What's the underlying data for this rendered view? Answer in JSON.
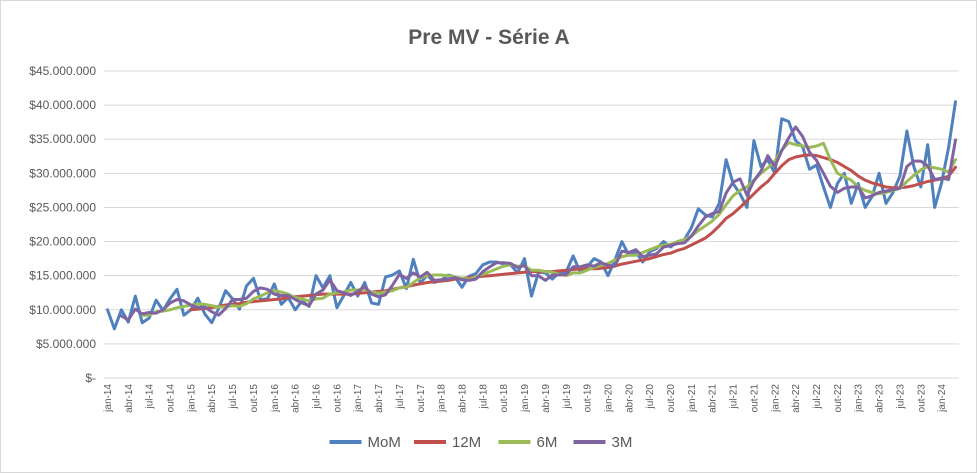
{
  "chart_data": {
    "type": "line",
    "title": "Pre MV - Série A",
    "xlabel": "",
    "ylabel": "",
    "ylim": [
      0,
      45000000
    ],
    "yticks": [
      0,
      5000000,
      10000000,
      15000000,
      20000000,
      25000000,
      30000000,
      35000000,
      40000000,
      45000000
    ],
    "ytick_labels": [
      "$-",
      "$5.000.000",
      "$10.000.000",
      "$15.000.000",
      "$20.000.000",
      "$25.000.000",
      "$30.000.000",
      "$35.000.000",
      "$40.000.000",
      "$45.000.000"
    ],
    "grid": true,
    "legend_position": "bottom",
    "x": [
      "jan-14",
      "fev-14",
      "mar-14",
      "abr-14",
      "mai-14",
      "jun-14",
      "jul-14",
      "ago-14",
      "set-14",
      "out-14",
      "nov-14",
      "dez-14",
      "jan-15",
      "fev-15",
      "mar-15",
      "abr-15",
      "mai-15",
      "jun-15",
      "jul-15",
      "ago-15",
      "set-15",
      "out-15",
      "nov-15",
      "dez-15",
      "jan-16",
      "fev-16",
      "mar-16",
      "abr-16",
      "mai-16",
      "jun-16",
      "jul-16",
      "ago-16",
      "set-16",
      "out-16",
      "nov-16",
      "dez-16",
      "jan-17",
      "fev-17",
      "mar-17",
      "abr-17",
      "mai-17",
      "jun-17",
      "jul-17",
      "ago-17",
      "set-17",
      "out-17",
      "nov-17",
      "dez-17",
      "jan-18",
      "fev-18",
      "mar-18",
      "abr-18",
      "mai-18",
      "jun-18",
      "jul-18",
      "ago-18",
      "set-18",
      "out-18",
      "nov-18",
      "dez-18",
      "jan-19",
      "fev-19",
      "mar-19",
      "abr-19",
      "mai-19",
      "jun-19",
      "jul-19",
      "ago-19",
      "set-19",
      "out-19",
      "nov-19",
      "dez-19",
      "jan-20",
      "fev-20",
      "mar-20",
      "abr-20",
      "mai-20",
      "jun-20",
      "jul-20",
      "ago-20",
      "set-20",
      "out-20",
      "nov-20",
      "dez-20",
      "jan-21",
      "fev-21",
      "mar-21",
      "abr-21",
      "mai-21",
      "jun-21",
      "jul-21",
      "ago-21",
      "set-21",
      "out-21",
      "nov-21",
      "dez-21",
      "jan-22",
      "fev-22",
      "mar-22",
      "abr-22",
      "mai-22",
      "jun-22",
      "jul-22",
      "ago-22",
      "set-22",
      "out-22",
      "nov-22",
      "dez-22",
      "jan-23",
      "fev-23",
      "mar-23",
      "abr-23",
      "mai-23",
      "jun-23",
      "jul-23",
      "ago-23",
      "set-23",
      "out-23",
      "nov-23",
      "dez-23",
      "jan-24",
      "fev-24",
      "mar-24"
    ],
    "x_tick_labels": [
      "jan-14",
      "abr-14",
      "jul-14",
      "out-14",
      "jan-15",
      "abr-15",
      "jul-15",
      "out-15",
      "jan-16",
      "abr-16",
      "jul-16",
      "out-16",
      "jan-17",
      "abr-17",
      "jul-17",
      "out-17",
      "jan-18",
      "abr-18",
      "jul-18",
      "out-18",
      "jan-19",
      "abr-19",
      "jul-19",
      "out-19",
      "jan-20",
      "abr-20",
      "jul-20",
      "out-20",
      "jan-21",
      "abr-21",
      "jul-21",
      "out-21",
      "jan-22",
      "abr-22",
      "jul-22",
      "out-22",
      "jan-23",
      "abr-23",
      "jul-23",
      "out-23",
      "jan-24"
    ],
    "series": [
      {
        "name": "MoM",
        "color": "#4e81bd",
        "values": [
          10.0,
          7.2,
          10.0,
          8.2,
          12.0,
          8.1,
          8.8,
          11.4,
          9.9,
          11.6,
          13.0,
          9.2,
          10.0,
          11.7,
          9.4,
          8.1,
          10.2,
          12.8,
          11.6,
          10.1,
          13.5,
          14.6,
          11.5,
          11.6,
          13.8,
          10.8,
          11.8,
          10.0,
          11.3,
          10.5,
          15.0,
          13.2,
          15.0,
          10.3,
          12.1,
          14.0,
          12.0,
          14.0,
          11.0,
          10.8,
          14.8,
          15.1,
          15.7,
          13.1,
          17.4,
          13.9,
          15.1,
          14.0,
          14.3,
          15.1,
          14.8,
          13.3,
          14.9,
          15.3,
          16.6,
          17.0,
          17.0,
          16.7,
          16.6,
          15.4,
          17.5,
          12.0,
          15.5,
          15.4,
          14.5,
          15.5,
          15.6,
          17.9,
          15.5,
          16.3,
          17.5,
          17.0,
          15.0,
          17.3,
          20.0,
          18.0,
          18.5,
          17.0,
          18.5,
          19.0,
          20.0,
          19.2,
          20.0,
          20.3,
          22.0,
          24.8,
          23.9,
          23.6,
          25.6,
          32.0,
          28.5,
          27.0,
          25.0,
          34.8,
          31.0,
          32.0,
          30.0,
          38.0,
          37.6,
          34.8,
          33.9,
          30.6,
          31.2,
          28.0,
          25.0,
          28.5,
          30.0,
          25.6,
          28.5,
          25.0,
          26.6,
          30.0,
          25.6,
          27.2,
          29.6,
          36.2,
          31.0,
          28.0,
          34.2,
          25.0,
          28.6,
          33.8,
          40.5
        ]
      },
      {
        "name": "12M",
        "color": "#c0504d",
        "values": [
          null,
          null,
          null,
          null,
          null,
          null,
          null,
          null,
          null,
          null,
          null,
          null,
          10.0,
          10.1,
          10.2,
          10.3,
          10.5,
          10.7,
          10.8,
          10.9,
          11.1,
          11.2,
          11.3,
          11.4,
          11.5,
          11.6,
          11.8,
          11.9,
          12.0,
          12.1,
          12.2,
          12.3,
          12.3,
          12.3,
          12.3,
          12.3,
          12.4,
          12.5,
          12.6,
          12.7,
          12.8,
          13.0,
          13.2,
          13.4,
          13.6,
          13.8,
          14.0,
          14.1,
          14.2,
          14.3,
          14.5,
          14.6,
          14.7,
          14.8,
          14.9,
          15.0,
          15.1,
          15.2,
          15.3,
          15.4,
          15.5,
          15.6,
          15.6,
          15.6,
          15.6,
          15.7,
          15.8,
          15.9,
          16.0,
          16.0,
          16.0,
          16.1,
          16.2,
          16.4,
          16.7,
          16.9,
          17.1,
          17.3,
          17.5,
          17.8,
          18.1,
          18.3,
          18.7,
          19.0,
          19.5,
          20.0,
          20.5,
          21.3,
          22.3,
          23.4,
          24.1,
          25.0,
          26.0,
          27.0,
          28.0,
          28.8,
          30.0,
          31.1,
          32.0,
          32.4,
          32.6,
          32.7,
          32.6,
          32.3,
          32.0,
          31.6,
          31.0,
          30.4,
          29.6,
          29.0,
          28.6,
          28.3,
          28.0,
          27.9,
          27.9,
          28.0,
          28.2,
          28.5,
          28.8,
          29.0,
          29.2,
          29.6,
          30.9
        ]
      },
      {
        "name": "6M",
        "color": "#9bbb59",
        "values": [
          null,
          null,
          null,
          null,
          null,
          9.2,
          9.2,
          9.7,
          9.8,
          10.0,
          10.3,
          10.5,
          10.7,
          10.8,
          10.8,
          10.6,
          10.4,
          10.4,
          10.6,
          10.5,
          10.9,
          11.6,
          12.0,
          12.5,
          12.8,
          12.6,
          12.3,
          11.8,
          11.6,
          11.3,
          11.6,
          11.7,
          12.3,
          12.5,
          12.6,
          12.9,
          12.9,
          13.0,
          12.6,
          12.4,
          12.6,
          12.8,
          13.2,
          13.3,
          14.0,
          14.7,
          15.0,
          15.1,
          15.1,
          15.0,
          14.8,
          14.6,
          14.5,
          14.8,
          15.2,
          15.6,
          16.0,
          16.4,
          16.6,
          16.4,
          16.4,
          15.8,
          15.8,
          15.6,
          15.5,
          15.2,
          15.0,
          15.4,
          15.4,
          15.8,
          16.2,
          16.5,
          16.8,
          17.3,
          17.8,
          18.0,
          18.0,
          18.4,
          18.8,
          19.2,
          19.5,
          19.6,
          20.0,
          20.3,
          20.8,
          21.6,
          22.3,
          23.0,
          24.0,
          25.4,
          26.7,
          27.5,
          28.0,
          29.0,
          30.0,
          30.8,
          31.8,
          33.4,
          34.5,
          34.2,
          34.0,
          33.8,
          34.0,
          34.4,
          32.0,
          30.0,
          29.5,
          29.0,
          28.0,
          27.5,
          27.2,
          27.0,
          27.2,
          27.5,
          27.8,
          28.8,
          29.7,
          30.5,
          31.0,
          30.8,
          30.6,
          30.2,
          32.0
        ]
      },
      {
        "name": "3M",
        "color": "#8064a2",
        "values": [
          null,
          null,
          9.1,
          8.5,
          10.1,
          9.4,
          9.6,
          9.5,
          10.0,
          11.0,
          11.5,
          11.3,
          10.7,
          10.3,
          10.4,
          9.7,
          9.2,
          10.2,
          11.5,
          11.5,
          11.7,
          12.7,
          13.2,
          13.0,
          12.3,
          12.1,
          12.1,
          11.5,
          11.0,
          10.6,
          12.3,
          12.9,
          14.4,
          12.8,
          12.5,
          12.1,
          12.7,
          13.4,
          12.3,
          11.9,
          12.2,
          13.6,
          15.2,
          14.6,
          15.4,
          14.8,
          15.5,
          14.3,
          14.4,
          14.5,
          14.7,
          14.4,
          14.3,
          14.5,
          15.6,
          16.3,
          16.9,
          16.9,
          16.8,
          16.2,
          16.5,
          15.0,
          15.0,
          14.3,
          15.1,
          15.1,
          15.2,
          16.3,
          16.3,
          16.6,
          16.4,
          16.9,
          16.5,
          16.4,
          18.6,
          18.4,
          18.8,
          17.8,
          18.0,
          18.2,
          19.2,
          19.4,
          19.7,
          19.8,
          20.8,
          22.3,
          23.6,
          24.1,
          24.4,
          27.1,
          28.7,
          29.2,
          26.8,
          28.9,
          30.3,
          32.6,
          31.0,
          33.3,
          35.2,
          36.8,
          35.4,
          33.1,
          31.9,
          30.0,
          28.1,
          27.2,
          27.8,
          28.0,
          28.0,
          26.4,
          26.7,
          27.2,
          27.4,
          27.6,
          27.8,
          31.0,
          31.8,
          31.8,
          31.1,
          29.1,
          29.3,
          29.1,
          34.9
        ]
      }
    ]
  }
}
